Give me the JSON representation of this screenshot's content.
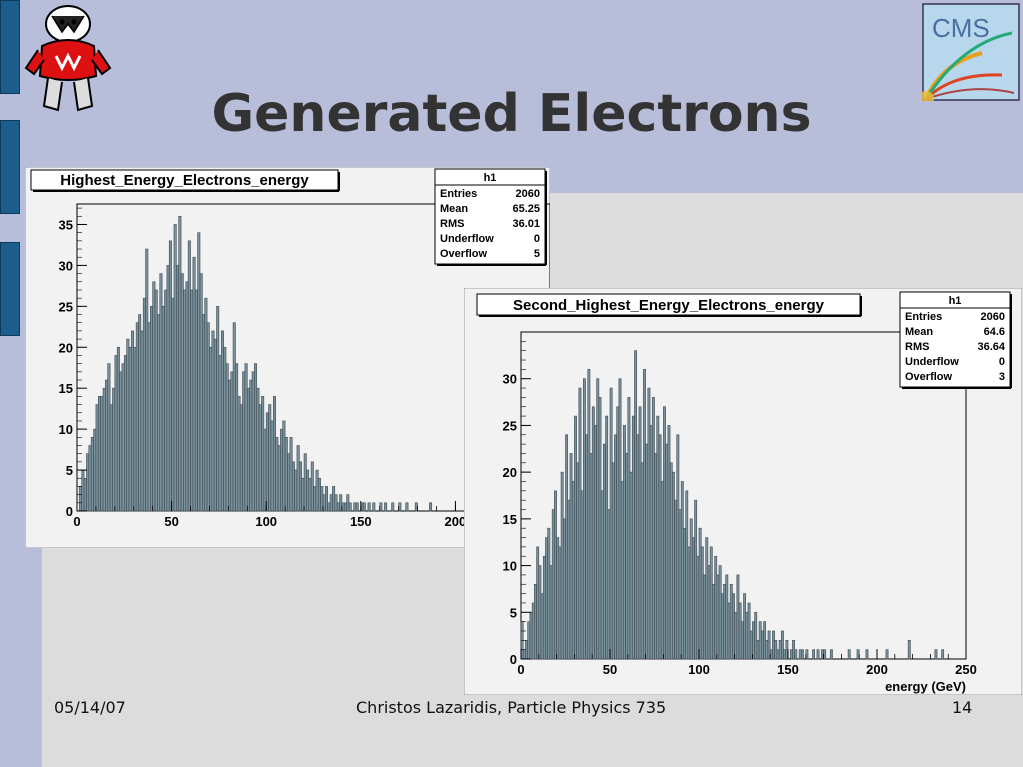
{
  "slide": {
    "title": "Generated Electrons",
    "date": "05/14/07",
    "author": "Christos Lazaridis, Particle Physics 735",
    "page_number": "14",
    "background_color": "#b8bdd9",
    "content_color": "#dcdcdc",
    "accent_color": "#1d5d8c"
  },
  "logos": {
    "left": "badger-mascot-logo",
    "right": "cms-experiment-logo",
    "right_text": "CMS"
  },
  "chart_data": [
    {
      "type": "bar",
      "title": "Highest_Energy_Electrons_energy",
      "xlabel": "energy (GeV)",
      "ylabel": "",
      "xlim": [
        0,
        250
      ],
      "ylim": [
        0,
        37.5
      ],
      "bin_width": 1.25,
      "x_ticks": [
        0,
        50,
        100,
        150,
        200
      ],
      "y_ticks": [
        0,
        5,
        10,
        15,
        20,
        25,
        30,
        35
      ],
      "fill_color": "#7b919c",
      "stats": {
        "name": "h1",
        "rows": [
          {
            "label": "Entries",
            "value": "2060"
          },
          {
            "label": "Mean",
            "value": "65.25"
          },
          {
            "label": "RMS",
            "value": "36.01"
          },
          {
            "label": "Underflow",
            "value": "0"
          },
          {
            "label": "Overflow",
            "value": "5"
          }
        ]
      },
      "values": [
        0,
        3,
        5,
        4,
        7,
        8,
        9,
        10,
        13,
        14,
        14,
        15,
        16,
        18,
        13,
        15,
        19,
        20,
        17,
        18,
        19,
        21,
        20,
        22,
        20,
        23,
        24,
        22,
        26,
        32,
        23,
        25,
        28,
        27,
        24,
        29,
        25,
        27,
        30,
        33,
        26,
        35,
        30,
        36,
        29,
        27,
        28,
        33,
        27,
        31,
        27,
        34,
        29,
        24,
        26,
        23,
        20,
        22,
        21,
        25,
        19,
        22,
        20,
        18,
        16,
        17,
        23,
        18,
        14,
        13,
        17,
        18,
        15,
        16,
        17,
        18,
        15,
        13,
        14,
        10,
        12,
        13,
        11,
        14,
        9,
        8,
        10,
        11,
        9,
        7,
        9,
        6,
        5,
        8,
        6,
        4,
        7,
        5,
        4,
        6,
        3,
        5,
        4,
        3,
        2,
        3,
        1,
        2,
        3,
        2,
        1,
        2,
        1,
        1,
        2,
        1,
        0,
        1,
        1,
        0,
        1,
        1,
        0,
        1,
        0,
        1,
        0,
        0,
        1,
        0,
        1,
        0,
        0,
        1,
        0,
        0,
        1,
        0,
        0,
        1,
        0,
        0,
        0,
        1,
        0,
        0,
        0,
        0,
        0,
        1,
        0,
        0,
        0,
        0,
        0,
        0,
        0,
        0,
        0,
        0,
        0,
        0,
        0,
        0,
        0,
        0,
        0,
        0,
        0,
        0,
        0,
        0,
        0,
        0,
        0,
        0,
        0,
        0,
        0,
        0,
        0,
        0,
        0,
        0,
        0,
        0,
        0,
        0,
        0,
        0,
        0,
        0,
        0,
        0,
        0,
        0,
        0,
        0,
        0,
        0
      ]
    },
    {
      "type": "bar",
      "title": "Second_Highest_Energy_Electrons_energy",
      "xlabel": "energy (GeV)",
      "ylabel": "",
      "xlim": [
        0,
        250
      ],
      "ylim": [
        0,
        35
      ],
      "bin_width": 1.25,
      "x_ticks": [
        0,
        50,
        100,
        150,
        200,
        250
      ],
      "y_ticks": [
        0,
        5,
        10,
        15,
        20,
        25,
        30
      ],
      "fill_color": "#7b919c",
      "stats": {
        "name": "h1",
        "rows": [
          {
            "label": "Entries",
            "value": "2060"
          },
          {
            "label": "Mean",
            "value": "64.6"
          },
          {
            "label": "RMS",
            "value": "36.64"
          },
          {
            "label": "Underflow",
            "value": "0"
          },
          {
            "label": "Overflow",
            "value": "3"
          }
        ]
      },
      "values": [
        4,
        1,
        2,
        4,
        5,
        6,
        8,
        12,
        10,
        7,
        11,
        13,
        14,
        10,
        16,
        18,
        13,
        12,
        20,
        15,
        24,
        17,
        22,
        19,
        26,
        21,
        29,
        18,
        30,
        24,
        31,
        22,
        27,
        25,
        30,
        28,
        18,
        23,
        26,
        16,
        29,
        21,
        24,
        27,
        30,
        19,
        25,
        22,
        28,
        20,
        26,
        33,
        24,
        27,
        21,
        31,
        23,
        29,
        25,
        28,
        22,
        26,
        24,
        19,
        27,
        23,
        25,
        21,
        20,
        17,
        24,
        16,
        19,
        14,
        18,
        12,
        15,
        13,
        17,
        11,
        14,
        12,
        9,
        13,
        10,
        12,
        8,
        11,
        9,
        10,
        7,
        8,
        9,
        6,
        8,
        7,
        5,
        9,
        6,
        4,
        7,
        5,
        6,
        3,
        4,
        5,
        2,
        4,
        3,
        4,
        2,
        3,
        1,
        3,
        2,
        1,
        2,
        3,
        1,
        2,
        0,
        1,
        2,
        1,
        0,
        1,
        1,
        0,
        1,
        0,
        0,
        1,
        0,
        1,
        0,
        1,
        1,
        0,
        0,
        1,
        0,
        0,
        0,
        0,
        0,
        0,
        0,
        1,
        0,
        0,
        0,
        1,
        0,
        0,
        0,
        1,
        0,
        0,
        0,
        0,
        0,
        0,
        0,
        0,
        1,
        0,
        0,
        0,
        0,
        0,
        0,
        0,
        0,
        0,
        2,
        0,
        0,
        0,
        0,
        0,
        0,
        0,
        0,
        0,
        0,
        0,
        1,
        0,
        0,
        1,
        0,
        0,
        0,
        0,
        0,
        0,
        0,
        0,
        0,
        0
      ]
    }
  ]
}
